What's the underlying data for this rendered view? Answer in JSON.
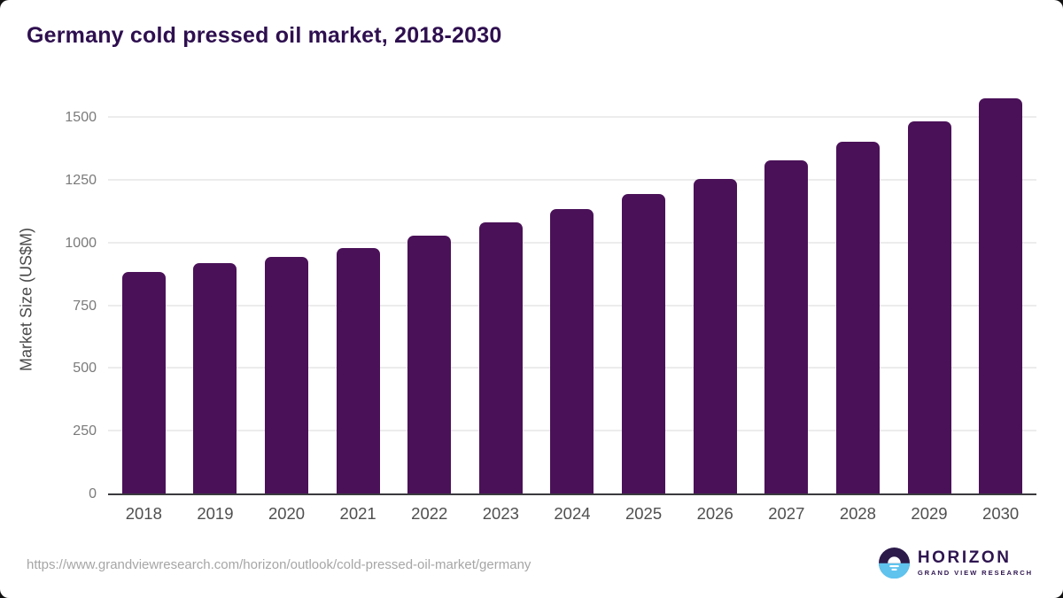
{
  "chart_data": {
    "type": "bar",
    "title": "Germany cold pressed oil market, 2018-2030",
    "xlabel": "",
    "ylabel": "Market Size (US$M)",
    "categories": [
      "2018",
      "2019",
      "2020",
      "2021",
      "2022",
      "2023",
      "2024",
      "2025",
      "2026",
      "2027",
      "2028",
      "2029",
      "2030"
    ],
    "values": [
      887,
      921,
      945,
      983,
      1033,
      1085,
      1136,
      1196,
      1259,
      1332,
      1405,
      1488,
      1580
    ],
    "ylim": [
      0,
      1600
    ],
    "yticks": [
      0,
      250,
      500,
      750,
      1000,
      1250,
      1500
    ],
    "grid": true,
    "legend": "none"
  },
  "colors": {
    "bar": "#4a1158",
    "title": "#2e0f4f",
    "gridline": "#ececec",
    "axis_line": "#3a3a3e",
    "y_tick_text": "#7a7a7a",
    "x_tick_text": "#4f4f4f",
    "url_text": "#a6a6a6",
    "logo_dark": "#2b1a4a",
    "logo_blue": "#5fc3ee"
  },
  "footer": {
    "source_url": "https://www.grandviewresearch.com/horizon/outlook/cold-pressed-oil-market/germany",
    "logo": {
      "brand": "HORIZON",
      "sub": "GRAND VIEW RESEARCH"
    }
  }
}
